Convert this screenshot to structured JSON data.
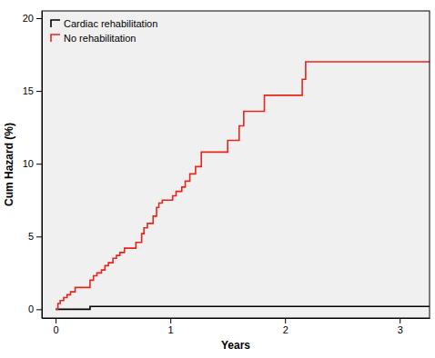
{
  "chart_data": {
    "type": "line",
    "x_label": "Years",
    "y_label": "Cum Hazard (%)",
    "xlim": [
      -0.12,
      3.26
    ],
    "ylim": [
      -0.6,
      20.5
    ],
    "xticks": [
      0,
      1,
      2,
      3
    ],
    "yticks": [
      0,
      5,
      10,
      15,
      20
    ],
    "legend": "top-left",
    "grid": false,
    "series": [
      {
        "name": "Cardiac rehabilitation",
        "color": "#000000",
        "line_style": "step",
        "x": [
          0,
          0.3,
          3.26
        ],
        "values": [
          0,
          0.2,
          0.2
        ]
      },
      {
        "name": "No rehabilitation",
        "color": "#e8251c",
        "line_style": "step",
        "x": [
          0,
          0.02,
          0.04,
          0.07,
          0.1,
          0.13,
          0.17,
          0.3,
          0.33,
          0.36,
          0.4,
          0.43,
          0.46,
          0.5,
          0.53,
          0.56,
          0.6,
          0.7,
          0.75,
          0.77,
          0.8,
          0.85,
          0.88,
          0.9,
          0.93,
          1.02,
          1.05,
          1.1,
          1.13,
          1.17,
          1.22,
          1.27,
          1.5,
          1.6,
          1.64,
          1.82,
          2.15,
          2.18,
          3.26
        ],
        "values": [
          0,
          0.4,
          0.6,
          0.8,
          1.0,
          1.2,
          1.5,
          2.0,
          2.3,
          2.5,
          2.7,
          3.0,
          3.2,
          3.5,
          3.7,
          3.9,
          4.2,
          4.6,
          5.2,
          5.6,
          5.9,
          6.4,
          7.0,
          7.3,
          7.5,
          7.8,
          8.1,
          8.4,
          8.8,
          9.3,
          9.8,
          10.8,
          11.6,
          12.6,
          13.6,
          14.7,
          15.8,
          17.0,
          17.0
        ]
      }
    ]
  }
}
